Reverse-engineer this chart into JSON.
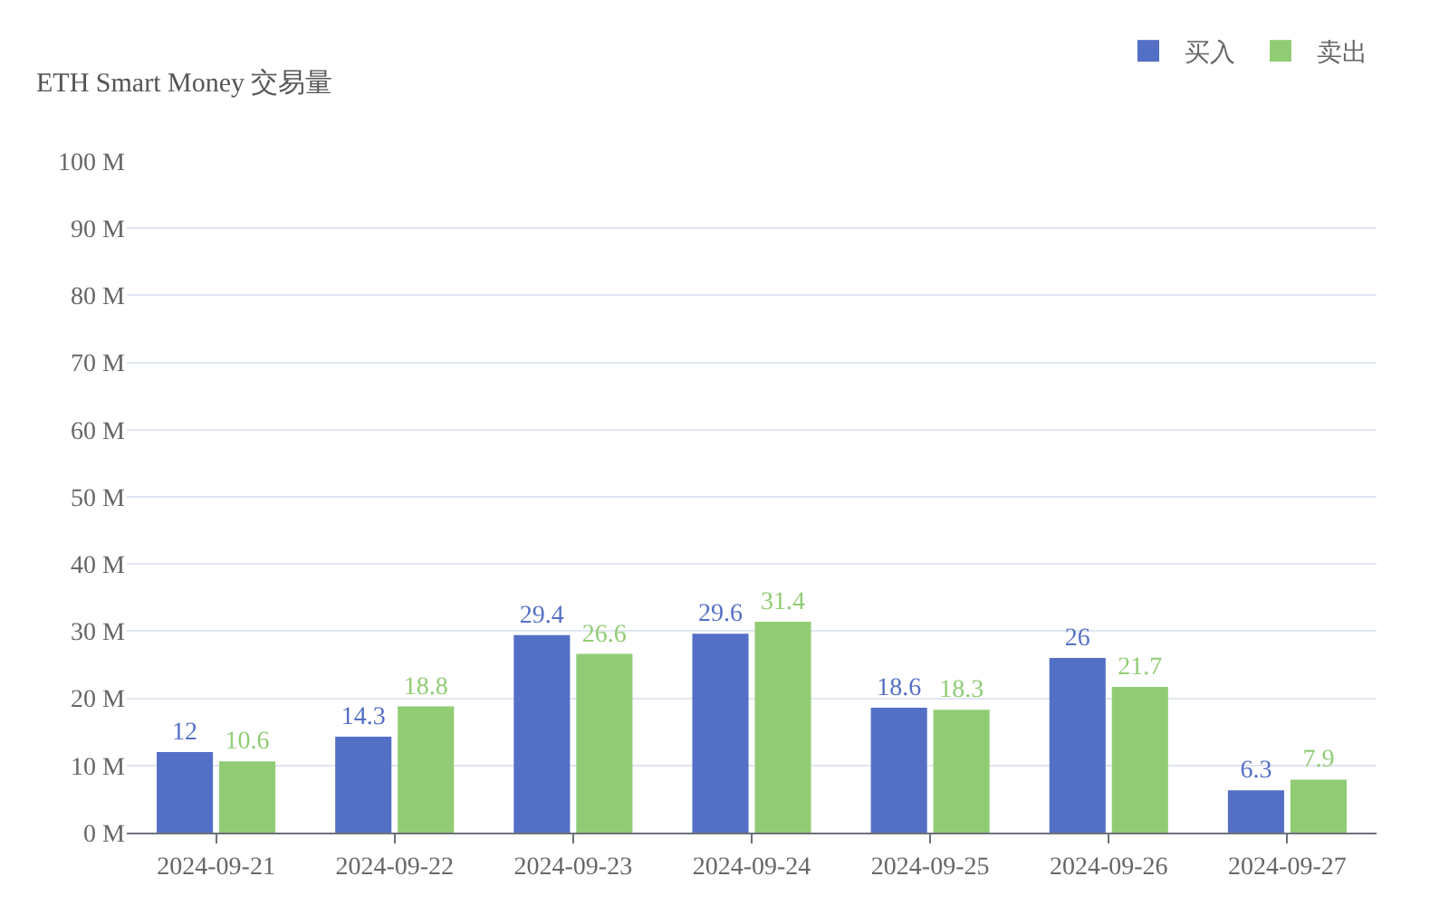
{
  "chart_data": {
    "type": "bar",
    "title": "ETH Smart Money 交易量",
    "categories": [
      "2024-09-21",
      "2024-09-22",
      "2024-09-23",
      "2024-09-24",
      "2024-09-25",
      "2024-09-26",
      "2024-09-27"
    ],
    "series": [
      {
        "name": "买入",
        "color": "#5470c6",
        "values": [
          12,
          14.3,
          29.4,
          29.6,
          18.6,
          26,
          6.3
        ]
      },
      {
        "name": "卖出",
        "color": "#91cc75",
        "values": [
          10.6,
          18.8,
          26.6,
          31.4,
          18.3,
          21.7,
          7.9
        ]
      }
    ],
    "ylim": [
      0,
      100
    ],
    "yticks": [
      {
        "value": 0,
        "label": "0 M"
      },
      {
        "value": 10,
        "label": "10 M"
      },
      {
        "value": 20,
        "label": "20 M"
      },
      {
        "value": 30,
        "label": "30 M"
      },
      {
        "value": 40,
        "label": "40 M"
      },
      {
        "value": 50,
        "label": "50 M"
      },
      {
        "value": 60,
        "label": "60 M"
      },
      {
        "value": 70,
        "label": "70 M"
      },
      {
        "value": 80,
        "label": "80 M"
      },
      {
        "value": 90,
        "label": "90 M"
      },
      {
        "value": 100,
        "label": "100 M"
      }
    ],
    "grid": "y",
    "legend": "top right",
    "data_labels": true
  }
}
